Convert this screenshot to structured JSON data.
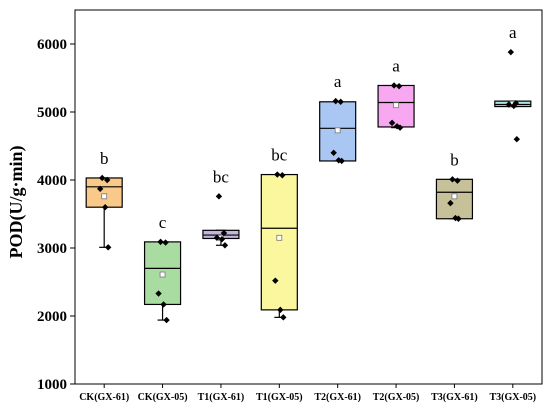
{
  "chart_data": {
    "type": "box",
    "ylabel": "POD(U/g·min)",
    "xlabel": "",
    "ylim": [
      1000,
      6500
    ],
    "yticks": [
      1000,
      2000,
      3000,
      4000,
      5000,
      6000
    ],
    "grid": false,
    "legend": "none",
    "categories": [
      "CK(GX-61)",
      "CK(GX-05)",
      "T1(GX-61)",
      "T1(GX-05)",
      "T2(GX-61)",
      "T2(GX-05)",
      "T3(GX-61)",
      "T3(GX-05)"
    ],
    "boxes": [
      {
        "category": "CK(GX-61)",
        "q1": 3600,
        "median": 3900,
        "q3": 4030,
        "mean": 3760,
        "whisker_low": 3010,
        "whisker_high": 4030,
        "points": [
          4030,
          4000,
          3870,
          3600,
          3010
        ],
        "letter": "b",
        "color": "#f9c98a"
      },
      {
        "category": "CK(GX-05)",
        "q1": 2170,
        "median": 2700,
        "q3": 3090,
        "mean": 2610,
        "whisker_low": 1940,
        "whisker_high": 3090,
        "points": [
          3090,
          3080,
          2330,
          2170,
          1940
        ],
        "letter": "c",
        "color": "#a8dca0"
      },
      {
        "category": "T1(GX-61)",
        "q1": 3140,
        "median": 3190,
        "q3": 3260,
        "mean": 3150,
        "whisker_low": 3040,
        "whisker_high": 3260,
        "points": [
          3760,
          3220,
          3150,
          3130,
          3040
        ],
        "letter": "bc",
        "color": "#c4b6dc"
      },
      {
        "category": "T1(GX-05)",
        "q1": 2090,
        "median": 3290,
        "q3": 4080,
        "mean": 3150,
        "whisker_low": 1980,
        "whisker_high": 4080,
        "points": [
          4080,
          4070,
          2520,
          2090,
          1980
        ],
        "letter": "bc",
        "color": "#fbf79e"
      },
      {
        "category": "T2(GX-61)",
        "q1": 4280,
        "median": 4760,
        "q3": 5150,
        "mean": 4730,
        "whisker_low": 4280,
        "whisker_high": 5150,
        "points": [
          5160,
          5150,
          4400,
          4290,
          4280
        ],
        "letter": "a",
        "color": "#a9c7f2"
      },
      {
        "category": "T2(GX-05)",
        "q1": 4780,
        "median": 5140,
        "q3": 5390,
        "mean": 5100,
        "whisker_low": 4770,
        "whisker_high": 5390,
        "points": [
          5390,
          5380,
          4840,
          4790,
          4770
        ],
        "letter": "a",
        "color": "#f7a8f0"
      },
      {
        "category": "T3(GX-61)",
        "q1": 3430,
        "median": 3820,
        "q3": 4010,
        "mean": 3760,
        "whisker_low": 3430,
        "whisker_high": 4010,
        "points": [
          4010,
          3990,
          3660,
          3440,
          3430
        ],
        "letter": "b",
        "color": "#c7c19a"
      },
      {
        "category": "T3(GX-05)",
        "q1": 5080,
        "median": 5110,
        "q3": 5160,
        "mean": 5120,
        "whisker_low": 5080,
        "whisker_high": 5160,
        "points": [
          5880,
          5130,
          5110,
          5090,
          4600
        ],
        "letter": "a",
        "color": "#a7e6e6"
      }
    ]
  }
}
